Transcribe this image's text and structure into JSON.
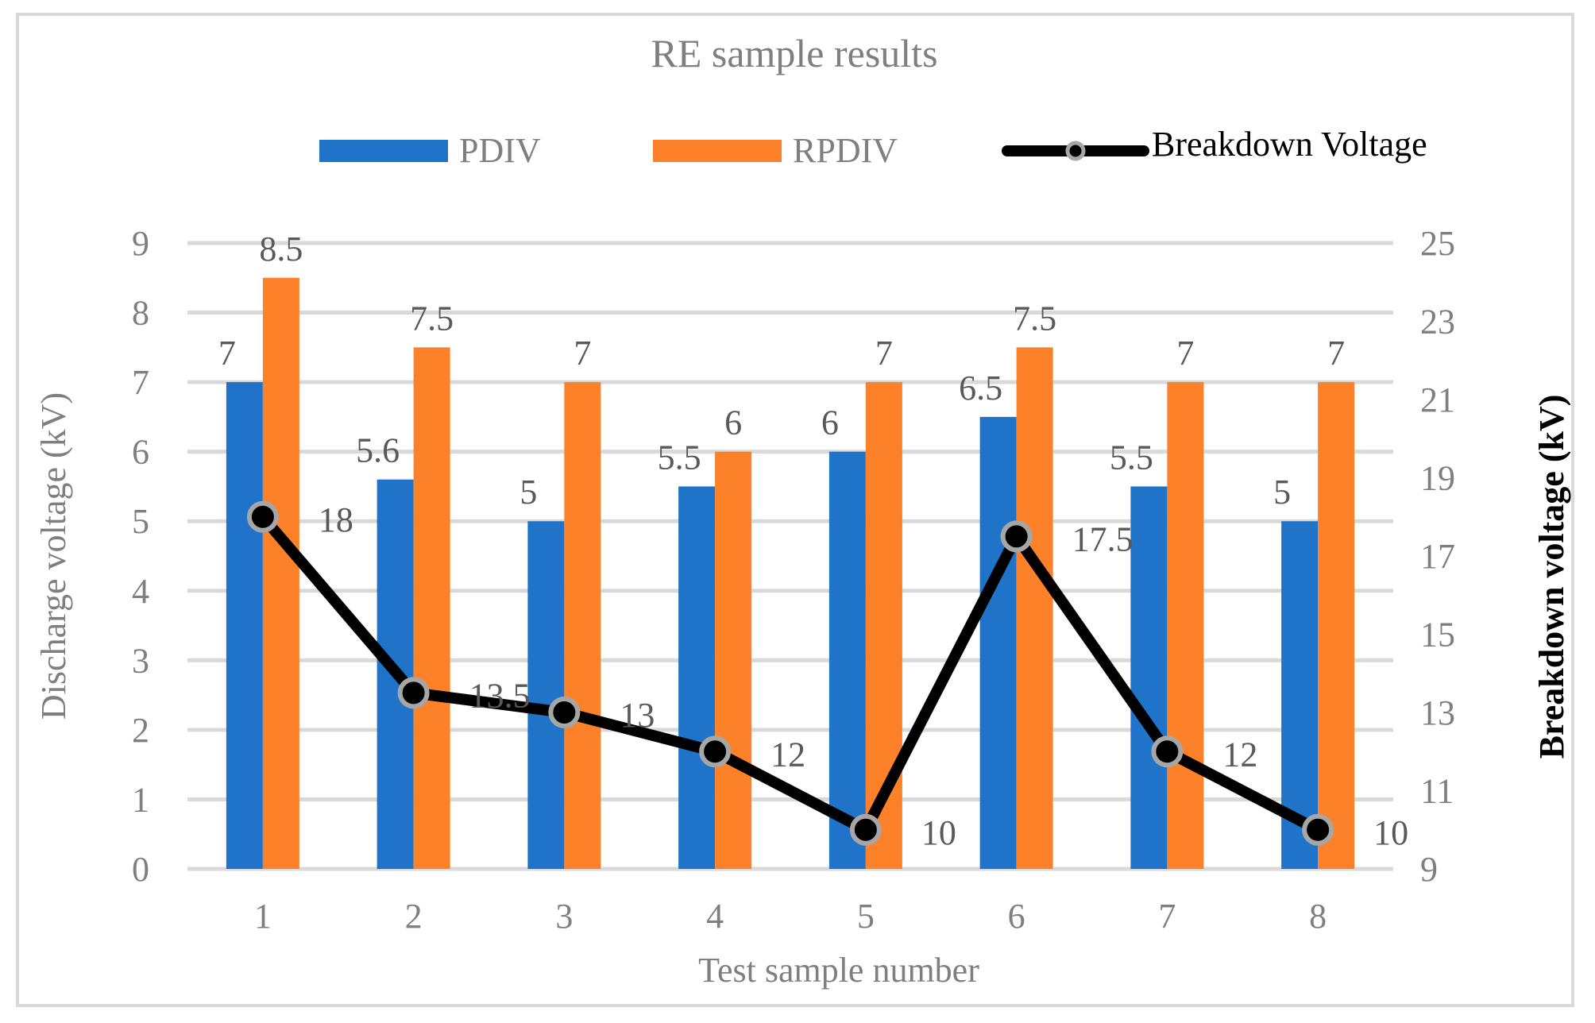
{
  "chart_data": {
    "type": "bar",
    "title": "RE sample results",
    "xlabel": "Test sample number",
    "ylabel": "Discharge voltage (kV)",
    "y2label": "Breakdown voltage (kV)",
    "categories": [
      "1",
      "2",
      "3",
      "4",
      "5",
      "6",
      "7",
      "8"
    ],
    "ylim": [
      0,
      9
    ],
    "y2lim": [
      9,
      25
    ],
    "yticks": [
      "0",
      "1",
      "2",
      "3",
      "4",
      "5",
      "6",
      "7",
      "8",
      "9"
    ],
    "y2ticks": [
      "9",
      "11",
      "13",
      "15",
      "17",
      "19",
      "21",
      "23",
      "25"
    ],
    "grid": true,
    "legend_position": "top",
    "series": [
      {
        "name": "PDIV",
        "type": "bar",
        "axis": "left",
        "color": "#1f74c9",
        "values": [
          7,
          5.6,
          5,
          5.5,
          6,
          6.5,
          5.5,
          5
        ],
        "labels": [
          "7",
          "5.6",
          "5",
          "5.5",
          "6",
          "6.5",
          "5.5",
          "5"
        ]
      },
      {
        "name": "RPDIV",
        "type": "bar",
        "axis": "left",
        "color": "#fd8128",
        "values": [
          8.5,
          7.5,
          7,
          6,
          7,
          7.5,
          7,
          7
        ],
        "labels": [
          "8.5",
          "7.5",
          "7",
          "6",
          "7",
          "7.5",
          "7",
          "7"
        ]
      },
      {
        "name": "Breakdown Voltage",
        "type": "line",
        "axis": "right",
        "color": "#000000",
        "marker_color": "#a6a6a6",
        "values": [
          18,
          13.5,
          13,
          12,
          10,
          17.5,
          12,
          10
        ],
        "labels": [
          "18",
          "13.5",
          "13",
          "12",
          "10",
          "17.5",
          "12",
          "10"
        ]
      }
    ]
  }
}
